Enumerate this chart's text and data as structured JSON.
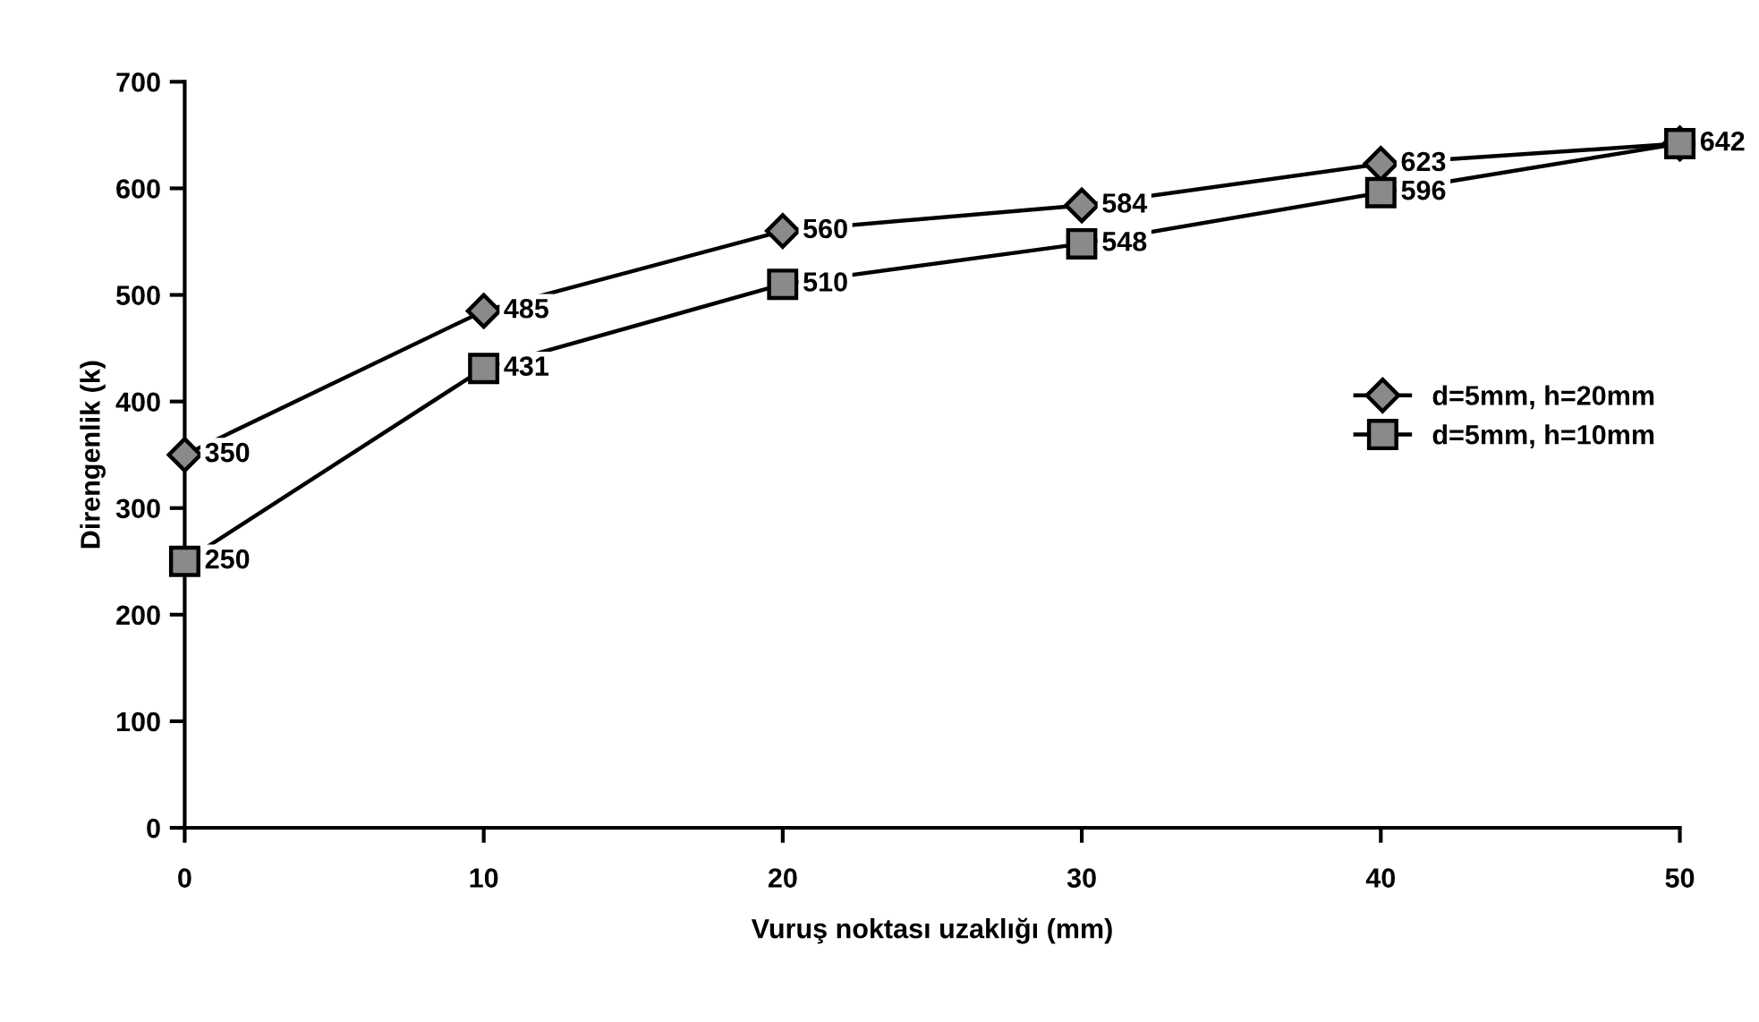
{
  "chart_data": {
    "type": "line",
    "xlabel": "Vuruş noktası uzaklığı (mm)",
    "ylabel": "Direngenlik (k)",
    "x": [
      0,
      10,
      20,
      30,
      40,
      50
    ],
    "series": [
      {
        "name": "d=5mm, h=20mm",
        "color": "#000000",
        "marker": "diamond",
        "values": [
          350,
          485,
          560,
          584,
          623,
          642
        ],
        "value_labels": [
          "350",
          "485",
          "560",
          "584",
          "623",
          null
        ]
      },
      {
        "name": "d=5mm, h=10mm",
        "color": "#000000",
        "marker": "square",
        "values": [
          250,
          431,
          510,
          548,
          596,
          642
        ],
        "value_labels": [
          "250",
          "431",
          "510",
          "548",
          "596",
          "642"
        ]
      }
    ],
    "xlim": [
      0,
      50
    ],
    "xticks": [
      0,
      10,
      20,
      30,
      40,
      50
    ],
    "ylim": [
      0,
      700
    ],
    "yticks": [
      0,
      100,
      200,
      300,
      400,
      500,
      600,
      700
    ],
    "grid": false,
    "legend": "right",
    "line_style": "solid"
  }
}
